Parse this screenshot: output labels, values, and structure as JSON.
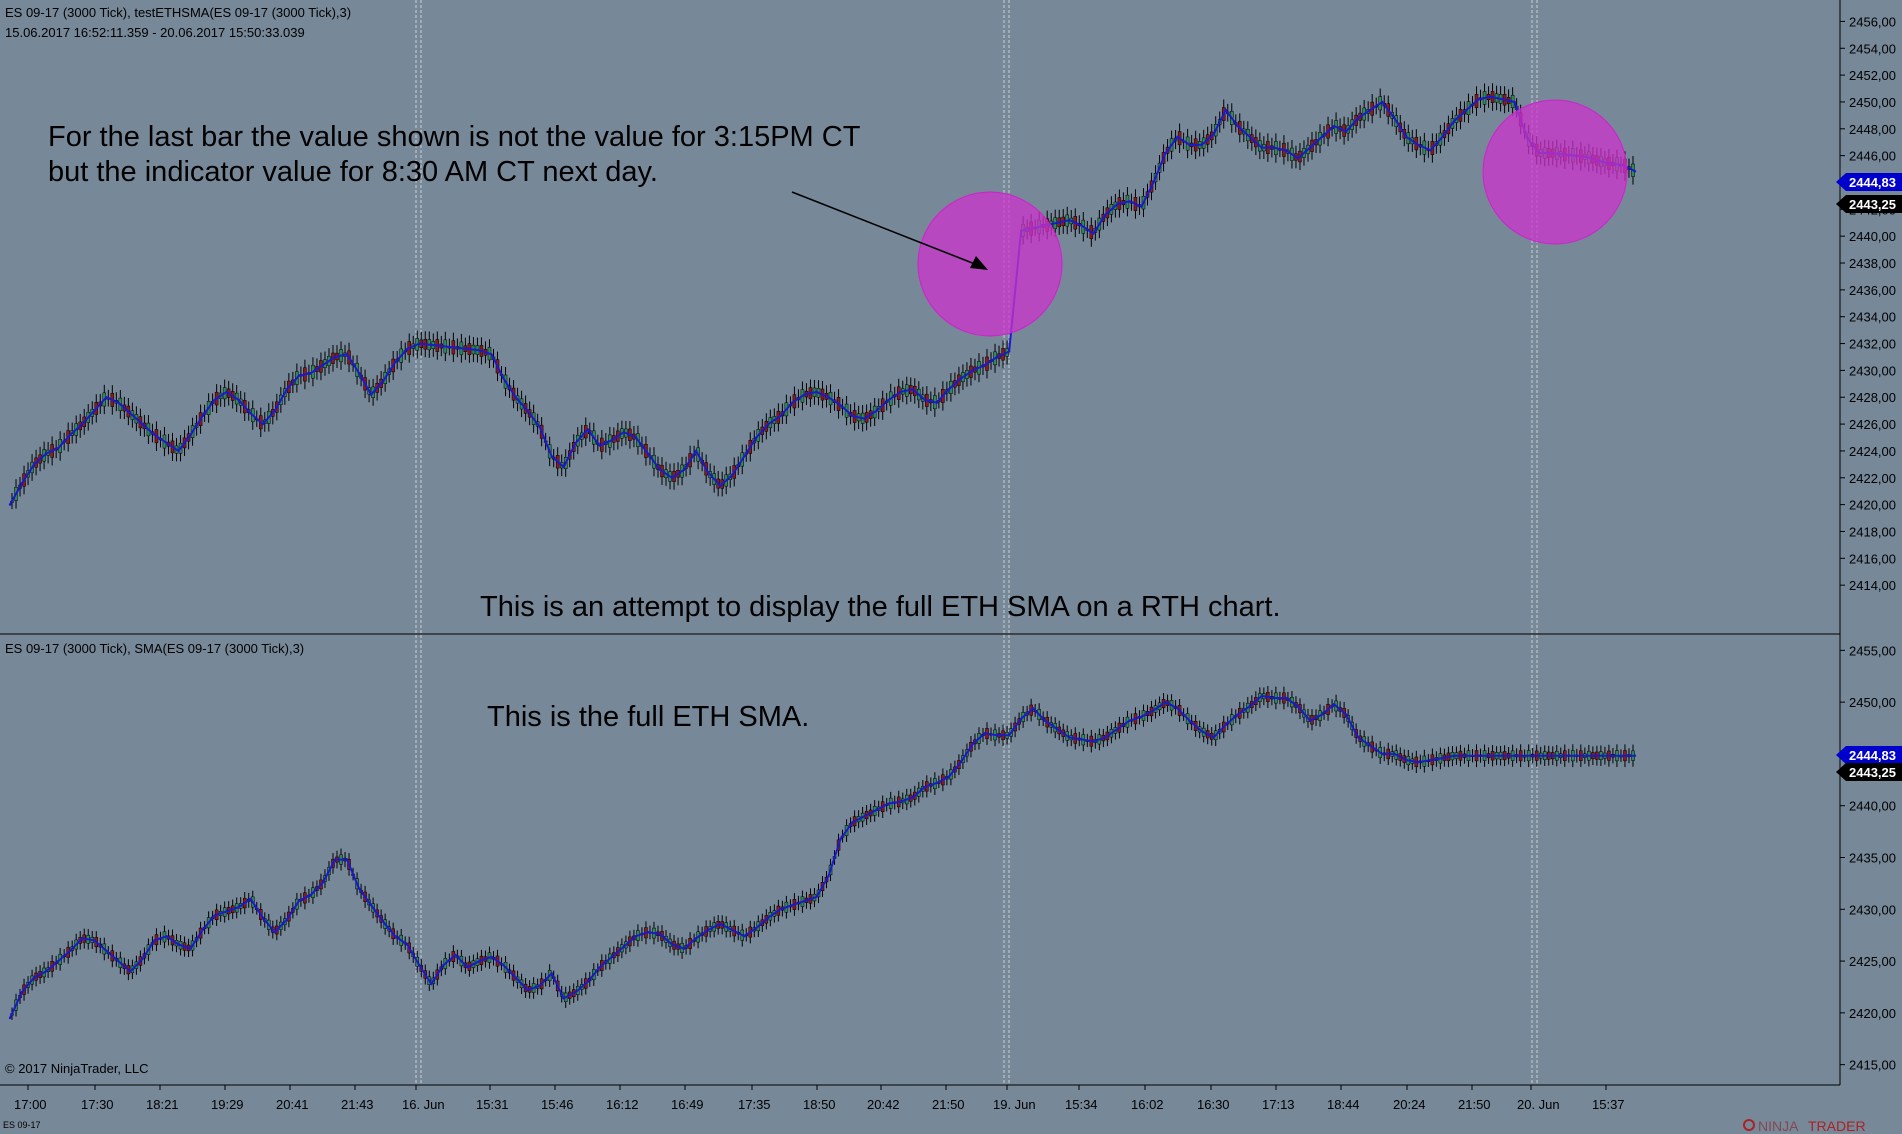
{
  "colors": {
    "background": "#778899",
    "up_candle": "#2e8b57",
    "down_candle": "#8b1a1a",
    "wick": "#000000",
    "sma_line": "#1a1acc",
    "highlight_circle": "#cc33cc",
    "price_flag_sma": "#0000cc",
    "price_flag_last": "#000000"
  },
  "panel_top": {
    "header": "ES 09-17 (3000 Tick), testETHSMA(ES 09-17 (3000 Tick),3)",
    "range": "15.06.2017 16:52:11.359 - 20.06.2017 15:50:33.039",
    "annotation_1": "For the last bar the value shown is not the value for 3:15PM CT",
    "annotation_2": "but the indicator value for 8:30 AM CT next day.",
    "annotation_3": "This is an attempt to display the full ETH SMA on a RTH chart.",
    "flag_sma": "2444,83",
    "flag_last": "2443,25"
  },
  "panel_bottom": {
    "header": "ES 09-17 (3000 Tick), SMA(ES 09-17 (3000 Tick),3)",
    "annotation": "This is the full ETH SMA.",
    "flag_sma": "2444,83",
    "flag_last": "2443,25",
    "copyright": "© 2017 NinjaTrader, LLC"
  },
  "footer": {
    "instrument": "ES 09-17",
    "brand_a": "NINJA",
    "brand_b": "TRADER"
  },
  "chart_data": [
    {
      "type": "line",
      "title": "ES 09-17 (3000 Tick), testETHSMA(ES 09-17 (3000 Tick),3)",
      "x_ticks": [
        "17:00",
        "17:30",
        "18:21",
        "19:29",
        "20:41",
        "21:43",
        "16. Jun",
        "15:31",
        "15:46",
        "16:12",
        "16:49",
        "17:35",
        "18:50",
        "20:42",
        "21:50",
        "19. Jun",
        "15:34",
        "16:02",
        "16:30",
        "17:13",
        "18:44",
        "20:24",
        "21:50",
        "20. Jun",
        "15:37"
      ],
      "y_ticks": [
        "2414,00",
        "2416,00",
        "2418,00",
        "2420,00",
        "2422,00",
        "2424,00",
        "2426,00",
        "2428,00",
        "2430,00",
        "2432,00",
        "2434,00",
        "2436,00",
        "2438,00",
        "2440,00",
        "2442,00",
        "2444,00",
        "2446,00",
        "2448,00",
        "2450,00",
        "2452,00",
        "2454,00",
        "2456,00"
      ],
      "ylim": [
        2412,
        2457
      ],
      "series": [
        {
          "name": "testETHSMA(ES 09-17 (3000 Tick),3)",
          "x": [
            0,
            10,
            20,
            30,
            40,
            50,
            60,
            70,
            80,
            90,
            100,
            110,
            120,
            130,
            140,
            150,
            160,
            170,
            180,
            190,
            200,
            210,
            220,
            230,
            240,
            250,
            260,
            270,
            280,
            290,
            300,
            310,
            320,
            330,
            340,
            350,
            360,
            370,
            380,
            390,
            400,
            410,
            420,
            430,
            440,
            450,
            460,
            470,
            480,
            490,
            500,
            510,
            520,
            530,
            540,
            550,
            560,
            570,
            580,
            590,
            600,
            610,
            620,
            630,
            640,
            650,
            660,
            670,
            680,
            690,
            700,
            710,
            720,
            730,
            740,
            750,
            760,
            770,
            780,
            790,
            800,
            810,
            820,
            830,
            840,
            850,
            860,
            870,
            880,
            890,
            900,
            910,
            920,
            930,
            940,
            950,
            960,
            970,
            980,
            990,
            1000,
            1010,
            1020,
            1030,
            1040,
            1050,
            1060,
            1070,
            1080,
            1090,
            1100,
            1110,
            1120,
            1130,
            1140,
            1150,
            1160,
            1170,
            1180,
            1190,
            1200,
            1210,
            1220,
            1230,
            1240,
            1250,
            1260,
            1270,
            1280,
            1290,
            1300,
            1310,
            1320,
            1330,
            1340,
            1350
          ],
          "values": [
            2420.0,
            2421.6,
            2423.0,
            2423.8,
            2424.2,
            2425.2,
            2426.0,
            2427.0,
            2428.0,
            2427.6,
            2426.8,
            2426.0,
            2425.2,
            2424.6,
            2424.0,
            2425.2,
            2426.6,
            2427.8,
            2428.4,
            2427.8,
            2426.8,
            2426.0,
            2427.0,
            2428.6,
            2429.6,
            2429.8,
            2430.4,
            2431.0,
            2431.2,
            2429.8,
            2428.2,
            2429.2,
            2430.6,
            2431.6,
            2432.0,
            2431.9,
            2431.8,
            2431.7,
            2431.6,
            2431.5,
            2431.2,
            2429.4,
            2428.0,
            2427.0,
            2425.8,
            2423.6,
            2422.8,
            2424.6,
            2425.6,
            2424.4,
            2424.8,
            2425.4,
            2425.0,
            2423.8,
            2422.6,
            2422.0,
            2422.6,
            2424.0,
            2422.4,
            2421.4,
            2422.2,
            2423.6,
            2425.0,
            2426.0,
            2426.6,
            2427.6,
            2428.2,
            2428.4,
            2428.0,
            2427.4,
            2426.6,
            2426.4,
            2427.0,
            2427.8,
            2428.4,
            2428.6,
            2427.8,
            2427.6,
            2428.6,
            2429.4,
            2430.0,
            2430.4,
            2431.0,
            2431.4,
            2440.4,
            2440.6,
            2440.8,
            2441.0,
            2441.2,
            2440.8,
            2440.2,
            2441.6,
            2442.4,
            2442.6,
            2442.2,
            2444.0,
            2446.2,
            2447.4,
            2446.8,
            2446.8,
            2447.6,
            2449.4,
            2448.2,
            2447.4,
            2446.6,
            2446.6,
            2446.4,
            2445.8,
            2446.6,
            2447.4,
            2448.2,
            2447.8,
            2448.8,
            2449.4,
            2450.0,
            2448.8,
            2447.4,
            2446.8,
            2446.4,
            2447.4,
            2448.6,
            2449.4,
            2450.2,
            2450.4,
            2450.2,
            2450.0,
            2447.4,
            2446.2,
            2446.2,
            2446.1,
            2446.0,
            2445.9,
            2445.6,
            2445.4,
            2445.3,
            2444.83
          ]
        }
      ]
    },
    {
      "type": "line",
      "title": "ES 09-17 (3000 Tick), SMA(ES 09-17 (3000 Tick),3)",
      "x_ticks": [
        "17:00",
        "17:30",
        "18:21",
        "19:29",
        "20:41",
        "21:43",
        "16. Jun",
        "15:31",
        "15:46",
        "16:12",
        "16:49",
        "17:35",
        "18:50",
        "20:42",
        "21:50",
        "19. Jun",
        "15:34",
        "16:02",
        "16:30",
        "17:13",
        "18:44",
        "20:24",
        "21:50",
        "20. Jun",
        "15:37"
      ],
      "y_ticks": [
        "2415,00",
        "2420,00",
        "2425,00",
        "2430,00",
        "2435,00",
        "2440,00",
        "2445,00",
        "2450,00",
        "2455,00"
      ],
      "ylim": [
        2414,
        2456
      ],
      "series": [
        {
          "name": "SMA(ES 09-17 (3000 Tick),3)",
          "x": [
            0,
            10,
            20,
            30,
            40,
            50,
            60,
            70,
            80,
            90,
            100,
            110,
            120,
            130,
            140,
            150,
            160,
            170,
            180,
            190,
            200,
            210,
            220,
            230,
            240,
            250,
            260,
            270,
            280,
            290,
            300,
            310,
            320,
            330,
            340,
            350,
            360,
            370,
            380,
            390,
            400,
            410,
            420,
            430,
            440,
            450,
            460,
            470,
            480,
            490,
            500,
            510,
            520,
            530,
            540,
            550,
            560,
            570,
            580,
            590,
            600,
            610,
            620,
            630,
            640,
            650,
            660,
            670,
            680,
            690,
            700,
            710,
            720,
            730,
            740,
            750,
            760,
            770,
            780,
            790,
            800,
            810,
            820,
            830,
            840,
            850,
            860,
            870,
            880,
            890,
            900,
            910,
            920,
            930,
            940,
            950,
            960,
            970,
            980,
            990,
            1000,
            1010,
            1020,
            1030,
            1040,
            1050,
            1060,
            1070,
            1080,
            1090,
            1100,
            1110,
            1120,
            1130,
            1140,
            1150,
            1160,
            1170,
            1180,
            1190,
            1200,
            1210,
            1220,
            1230,
            1240,
            1250,
            1260,
            1270,
            1280,
            1290,
            1300,
            1310,
            1320,
            1330,
            1340,
            1350
          ],
          "values": [
            2419.5,
            2422.0,
            2423.4,
            2424.0,
            2425.0,
            2426.0,
            2427.2,
            2427.0,
            2426.0,
            2425.0,
            2424.0,
            2425.2,
            2427.0,
            2427.4,
            2426.6,
            2426.2,
            2428.0,
            2429.4,
            2429.8,
            2430.2,
            2431.0,
            2429.2,
            2427.8,
            2429.0,
            2430.8,
            2431.4,
            2432.6,
            2434.8,
            2434.8,
            2432.0,
            2430.4,
            2428.8,
            2427.4,
            2426.6,
            2424.6,
            2422.8,
            2424.6,
            2425.6,
            2424.4,
            2425.0,
            2425.4,
            2424.6,
            2423.4,
            2422.2,
            2422.6,
            2423.8,
            2421.4,
            2422.0,
            2423.0,
            2424.4,
            2425.4,
            2426.4,
            2427.4,
            2427.8,
            2427.6,
            2426.6,
            2426.2,
            2427.2,
            2428.0,
            2428.6,
            2428.0,
            2427.4,
            2428.2,
            2429.2,
            2430.0,
            2430.4,
            2430.8,
            2431.2,
            2433.2,
            2436.8,
            2438.4,
            2439.0,
            2439.6,
            2440.2,
            2440.4,
            2440.8,
            2441.8,
            2442.2,
            2442.8,
            2444.2,
            2446.0,
            2447.0,
            2446.8,
            2446.8,
            2448.4,
            2449.4,
            2448.2,
            2447.4,
            2446.6,
            2446.4,
            2446.2,
            2446.6,
            2447.4,
            2448.2,
            2448.6,
            2449.2,
            2450.0,
            2449.4,
            2448.2,
            2447.2,
            2446.6,
            2447.8,
            2448.8,
            2449.6,
            2450.6,
            2450.4,
            2450.4,
            2449.6,
            2448.2,
            2448.8,
            2449.8,
            2448.8,
            2446.6,
            2445.8,
            2445.0,
            2445.0,
            2444.4,
            2444.2,
            2444.4,
            2444.6,
            2444.83,
            2444.83,
            2444.83,
            2444.83,
            2444.83,
            2444.83,
            2444.83,
            2444.83,
            2444.83,
            2444.83,
            2444.83,
            2444.83,
            2444.83,
            2444.83,
            2444.83,
            2444.83
          ]
        }
      ]
    }
  ]
}
